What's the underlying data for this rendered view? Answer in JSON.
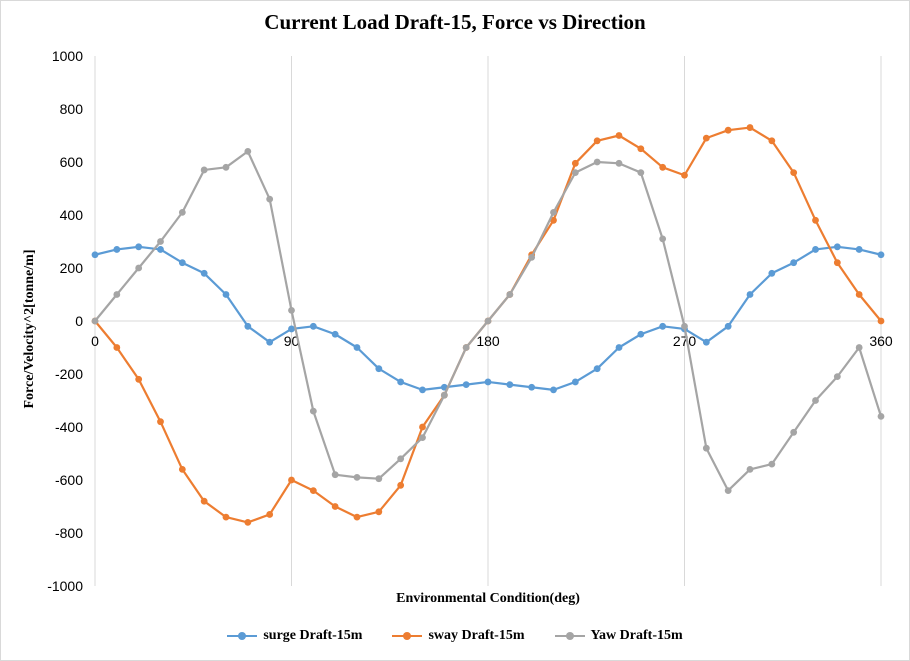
{
  "chart_data": {
    "type": "line",
    "title": "Current Load Draft-15, Force vs Direction",
    "xlabel": "Environmental Condition(deg)",
    "ylabel": "Force/Velocity^2[tonne/m]",
    "xlim": [
      0,
      360
    ],
    "ylim": [
      -1000,
      1000
    ],
    "x_ticks": [
      "0",
      "90",
      "180",
      "270",
      "360"
    ],
    "y_ticks": [
      "1000",
      "800",
      "600",
      "400",
      "200",
      "0",
      "-200",
      "-400",
      "-600",
      "-800",
      "-1000"
    ],
    "grid": "vertical",
    "legend_position": "bottom",
    "x": [
      0,
      10,
      20,
      30,
      40,
      50,
      60,
      70,
      80,
      90,
      100,
      110,
      120,
      130,
      140,
      150,
      160,
      170,
      180,
      190,
      200,
      210,
      220,
      230,
      240,
      250,
      260,
      270,
      280,
      290,
      300,
      310,
      320,
      330,
      340,
      350,
      360
    ],
    "series": [
      {
        "name": "surge Draft-15m",
        "color": "#5b9bd5",
        "values": [
          250,
          270,
          280,
          270,
          220,
          180,
          100,
          -20,
          -80,
          -30,
          -20,
          -50,
          -100,
          -180,
          -230,
          -260,
          -250,
          -240,
          -230,
          -240,
          -250,
          -260,
          -230,
          -180,
          -100,
          -50,
          -20,
          -30,
          -80,
          -20,
          100,
          180,
          220,
          270,
          280,
          270,
          250
        ]
      },
      {
        "name": "sway Draft-15m",
        "color": "#ed7d31",
        "values": [
          0,
          -100,
          -220,
          -380,
          -560,
          -680,
          -740,
          -760,
          -730,
          -600,
          -640,
          -700,
          -740,
          -720,
          -620,
          -400,
          -280,
          -100,
          0,
          100,
          250,
          380,
          595,
          680,
          700,
          650,
          580,
          550,
          690,
          720,
          730,
          680,
          560,
          380,
          220,
          100,
          0
        ]
      },
      {
        "name": "Yaw Draft-15m",
        "color": "#a5a5a5",
        "values": [
          0,
          100,
          200,
          300,
          410,
          570,
          580,
          640,
          460,
          40,
          -340,
          -580,
          -590,
          -595,
          -520,
          -440,
          -280,
          -100,
          0,
          100,
          240,
          410,
          560,
          600,
          595,
          560,
          310,
          -20,
          -480,
          -640,
          -560,
          -540,
          -420,
          -300,
          -210,
          -100,
          -360
        ]
      }
    ]
  }
}
